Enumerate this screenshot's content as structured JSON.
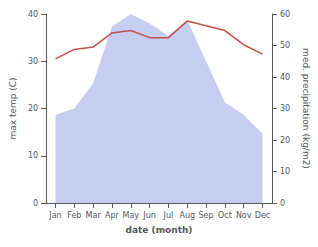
{
  "chart_data": {
    "type": "line",
    "xlabel": "date (month)",
    "ylabel": "max temp (C)",
    "y2label": "med. precipitation (kg/m2)",
    "categories": [
      "Jan",
      "Feb",
      "Mar",
      "Apr",
      "May",
      "Jun",
      "Jul",
      "Aug",
      "Sep",
      "Oct",
      "Nov",
      "Dec"
    ],
    "series": [
      {
        "type": "area",
        "axis": "y2",
        "color": "#c5cef0",
        "values": [
          28,
          30,
          38,
          56,
          60,
          57,
          53,
          58,
          45,
          32,
          28,
          22
        ]
      },
      {
        "type": "line",
        "axis": "y",
        "color": "#c0504d",
        "values": [
          30.5,
          32.5,
          33.0,
          36.0,
          36.5,
          35.0,
          35.0,
          38.5,
          37.5,
          36.5,
          33.5,
          31.5
        ]
      }
    ],
    "ylim": [
      0,
      40
    ],
    "yticks": [
      0,
      10,
      20,
      30,
      40
    ],
    "y2lim": [
      0,
      60
    ],
    "y2ticks": [
      0,
      10,
      20,
      30,
      40,
      50,
      60
    ],
    "grid": false
  }
}
